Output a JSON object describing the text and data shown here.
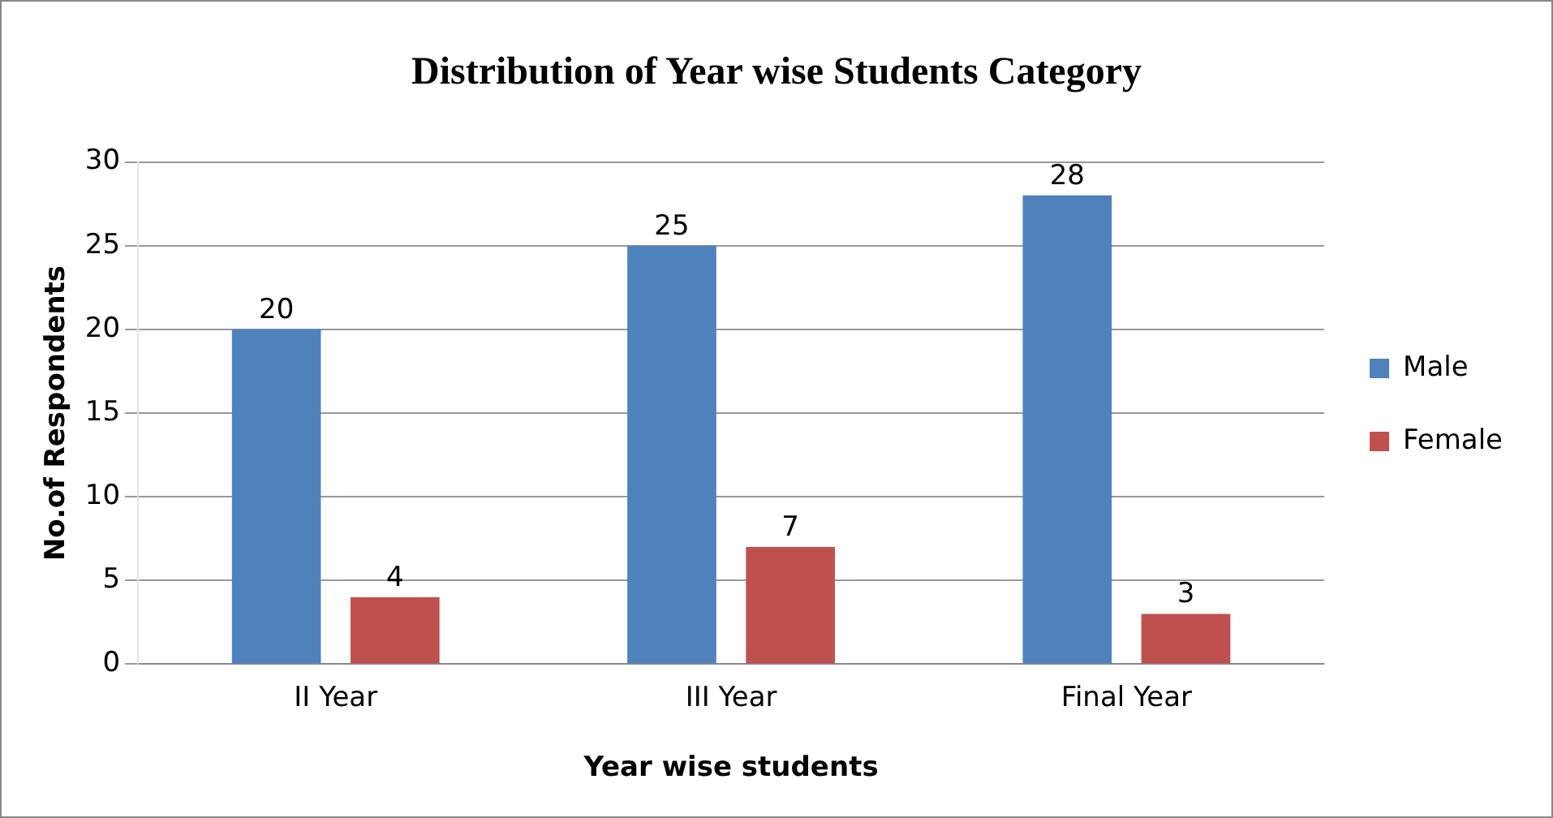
{
  "chart_data": {
    "type": "bar",
    "title": "Distribution of Year wise Students Category",
    "xlabel": "Year wise students",
    "ylabel": "No.of Respondents",
    "categories": [
      "II Year",
      "III Year",
      "Final Year"
    ],
    "series": [
      {
        "name": "Male",
        "color": "#4f81bd",
        "values": [
          20,
          25,
          28
        ]
      },
      {
        "name": "Female",
        "color": "#c0504d",
        "values": [
          4,
          7,
          3
        ]
      }
    ],
    "ylim": [
      0,
      30
    ],
    "yticks": [
      0,
      5,
      10,
      15,
      20,
      25,
      30
    ],
    "grid": "y",
    "legend": "right",
    "data_labels": true
  }
}
